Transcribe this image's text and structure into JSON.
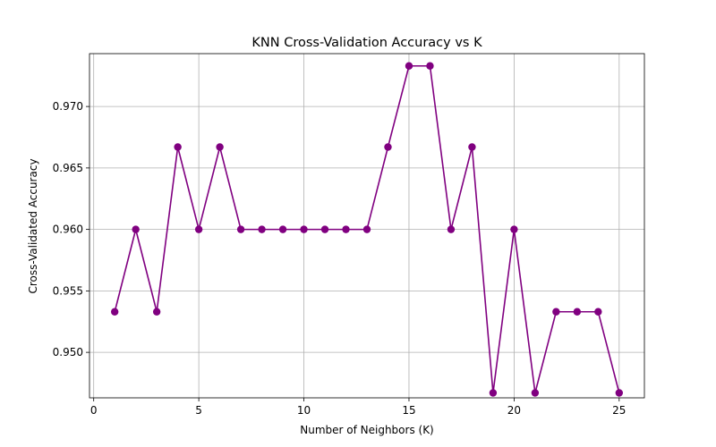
{
  "chart_data": {
    "type": "line",
    "title": "KNN Cross-Validation Accuracy vs K",
    "xlabel": "Number of Neighbors (K)",
    "ylabel": "Cross-Validated Accuracy",
    "xlim": [
      -0.2,
      26.2
    ],
    "ylim": [
      0.9463,
      0.9743
    ],
    "xticks": [
      0,
      5,
      10,
      15,
      20,
      25
    ],
    "xtick_labels": [
      "0",
      "5",
      "10",
      "15",
      "20",
      "25"
    ],
    "yticks": [
      0.95,
      0.955,
      0.96,
      0.965,
      0.97
    ],
    "ytick_labels": [
      "0.950",
      "0.955",
      "0.960",
      "0.965",
      "0.970"
    ],
    "grid": true,
    "series": [
      {
        "color": "#800080",
        "marker": "circle",
        "x": [
          1,
          2,
          3,
          4,
          5,
          6,
          7,
          8,
          9,
          10,
          11,
          12,
          13,
          14,
          15,
          16,
          17,
          18,
          19,
          20,
          21,
          22,
          23,
          24,
          25
        ],
        "y": [
          0.9533,
          0.96,
          0.9533,
          0.9667,
          0.96,
          0.9667,
          0.96,
          0.96,
          0.96,
          0.96,
          0.96,
          0.96,
          0.96,
          0.9667,
          0.9733,
          0.9733,
          0.96,
          0.9667,
          0.9467,
          0.96,
          0.9467,
          0.9533,
          0.9533,
          0.9533,
          0.9467
        ]
      }
    ]
  }
}
